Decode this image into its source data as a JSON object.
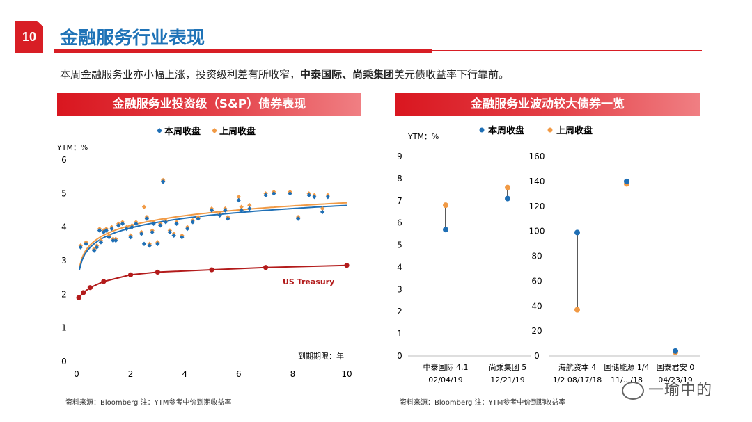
{
  "page": {
    "number": "10",
    "title": "金融服务行业表现",
    "summary_parts": [
      {
        "text": "本周金融服务业亦小幅上涨，投资级利差有所收窄，",
        "bold": false
      },
      {
        "text": "中泰国际、尚乘集团",
        "bold": true
      },
      {
        "text": "美元债收益率下行靠前。",
        "bold": false
      }
    ],
    "watermark": "一瑜中的"
  },
  "colors": {
    "this_week": "#1f6fb5",
    "last_week": "#f19a45",
    "treasury": "#b31b1b",
    "banner_red": "#d9161f",
    "title_blue": "#1f73b7"
  },
  "chart_data": [
    {
      "type": "scatter",
      "title": "金融服务业投资级（S&P）债券表现",
      "ylabel": "YTM：%",
      "xlabel": "到期期限：年",
      "xlim": [
        0,
        10
      ],
      "ylim": [
        0,
        6
      ],
      "xticks": [
        "0",
        "2",
        "4",
        "6",
        "8",
        "10"
      ],
      "yticks": [
        "0",
        "1",
        "2",
        "3",
        "4",
        "5",
        "6"
      ],
      "legend": {
        "position": "top-center",
        "entries": [
          "本周收盘",
          "上周收盘"
        ]
      },
      "grid": false,
      "series": [
        {
          "name": "本周收盘",
          "marker": "diamond",
          "x": [
            0.15,
            0.35,
            0.65,
            0.75,
            0.85,
            0.9,
            1.0,
            1.1,
            1.2,
            1.3,
            1.35,
            1.45,
            1.55,
            1.7,
            1.85,
            2.0,
            2.05,
            2.2,
            2.4,
            2.5,
            2.6,
            2.7,
            2.8,
            2.85,
            3.0,
            3.1,
            3.2,
            3.3,
            3.45,
            3.6,
            3.7,
            3.9,
            4.1,
            4.3,
            4.5,
            5.0,
            5.3,
            5.5,
            5.6,
            6.0,
            6.1,
            6.4,
            7.0,
            7.3,
            7.9,
            8.2,
            8.6,
            8.8,
            9.1,
            9.3
          ],
          "y": [
            3.4,
            3.5,
            3.3,
            3.4,
            3.9,
            3.55,
            3.85,
            3.9,
            3.7,
            3.95,
            3.6,
            3.6,
            4.05,
            4.1,
            3.95,
            3.7,
            4.0,
            4.1,
            3.8,
            3.5,
            4.25,
            3.45,
            3.85,
            4.1,
            3.5,
            4.05,
            5.35,
            4.15,
            3.85,
            3.75,
            4.1,
            3.7,
            3.95,
            4.15,
            4.25,
            4.5,
            4.35,
            4.5,
            4.25,
            4.8,
            4.5,
            4.55,
            4.95,
            5.0,
            5.0,
            4.25,
            4.95,
            4.9,
            4.45,
            4.9
          ]
        },
        {
          "name": "上周收盘",
          "marker": "diamond",
          "x": [
            0.15,
            0.35,
            0.65,
            0.75,
            0.85,
            0.9,
            1.0,
            1.1,
            1.2,
            1.3,
            1.35,
            1.45,
            1.55,
            1.7,
            1.85,
            2.0,
            2.05,
            2.2,
            2.4,
            2.5,
            2.6,
            2.7,
            2.8,
            2.85,
            3.0,
            3.1,
            3.2,
            3.3,
            3.45,
            3.6,
            3.7,
            3.9,
            4.1,
            4.3,
            4.5,
            5.0,
            5.3,
            5.5,
            5.6,
            6.0,
            6.1,
            6.4,
            7.0,
            7.3,
            7.9,
            8.2,
            8.6,
            8.8,
            9.1,
            9.3
          ],
          "y": [
            3.45,
            3.55,
            3.35,
            3.45,
            3.95,
            3.6,
            3.9,
            3.95,
            3.75,
            4.0,
            3.65,
            3.65,
            4.1,
            4.15,
            4.0,
            3.75,
            4.05,
            4.15,
            3.85,
            4.6,
            4.3,
            3.5,
            3.9,
            4.15,
            3.55,
            4.1,
            5.4,
            4.2,
            3.9,
            3.8,
            4.15,
            3.75,
            4.0,
            4.2,
            4.3,
            4.55,
            4.4,
            4.55,
            4.3,
            4.9,
            4.6,
            4.65,
            5.0,
            5.05,
            5.05,
            4.3,
            5.0,
            4.95,
            4.55,
            4.95
          ]
        },
        {
          "name": "US Treasury",
          "marker": "circle",
          "x": [
            0.08,
            0.25,
            0.5,
            1.0,
            2.0,
            3.0,
            5.0,
            7.0,
            10.0
          ],
          "y": [
            1.9,
            2.05,
            2.2,
            2.38,
            2.58,
            2.66,
            2.73,
            2.8,
            2.86
          ]
        }
      ],
      "annotations": [
        "US Treasury"
      ]
    },
    {
      "type": "dumbbell",
      "title": "金融服务业波动较大债券一览",
      "ylabel": "YTM：%",
      "legend": {
        "position": "top-center",
        "entries": [
          "本周收盘",
          "上周收盘"
        ]
      },
      "left_axis": {
        "ylim": [
          0,
          9
        ],
        "yticks": [
          "0",
          "1",
          "2",
          "3",
          "4",
          "5",
          "6",
          "7",
          "8",
          "9"
        ]
      },
      "right_axis": {
        "ylim": [
          0,
          160
        ],
        "yticks": [
          "0",
          "20",
          "40",
          "60",
          "80",
          "100",
          "120",
          "140",
          "160"
        ]
      },
      "grid": false,
      "bonds": [
        {
          "label1": "中泰国际 4.1",
          "label2": "02/04/19",
          "axis": "left",
          "this_week": 5.7,
          "last_week": 6.8
        },
        {
          "label1": "尚乘集团 5",
          "label2": "12/21/19",
          "axis": "left",
          "this_week": 7.1,
          "last_week": 7.6
        },
        {
          "label1": "海航资本 4",
          "label2": "1/2 08/17/18",
          "axis": "right",
          "this_week": 99,
          "last_week": 37
        },
        {
          "label1": "国储能源 1/4",
          "label2": "11/.../18",
          "axis": "right",
          "this_week": 140,
          "last_week": 138
        },
        {
          "label1": "国泰君安 0",
          "label2": "04/23/19",
          "axis": "right",
          "this_week": 4,
          "last_week": 3
        }
      ]
    }
  ],
  "sources": {
    "left": "资料来源：Bloomberg    注：YTM参考中价到期收益率",
    "right": "资料来源：Bloomberg    注：YTM参考中价到期收益率"
  }
}
